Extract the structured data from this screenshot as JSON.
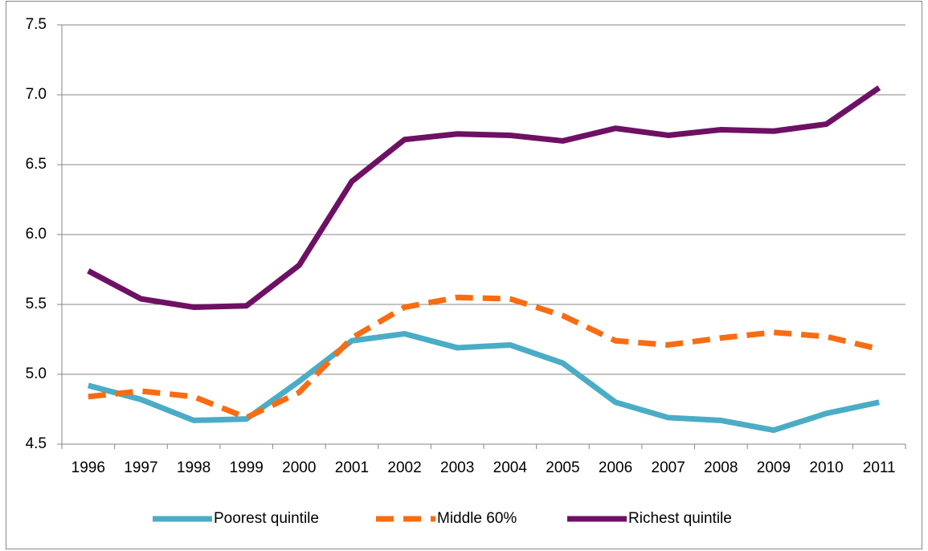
{
  "chart_data": {
    "type": "line",
    "categories": [
      "1996",
      "1997",
      "1998",
      "1999",
      "2000",
      "2001",
      "2002",
      "2003",
      "2004",
      "2005",
      "2006",
      "2007",
      "2008",
      "2009",
      "2010",
      "2011"
    ],
    "series": [
      {
        "name": "Poorest quintile",
        "color": "#4bacc6",
        "dashed": false,
        "values": [
          4.92,
          4.82,
          4.67,
          4.68,
          4.95,
          5.24,
          5.29,
          5.19,
          5.21,
          5.08,
          4.8,
          4.69,
          4.67,
          4.6,
          4.72,
          4.8
        ]
      },
      {
        "name": "Middle 60%",
        "color": "#f86c12",
        "dashed": true,
        "values": [
          4.84,
          4.88,
          4.84,
          4.69,
          4.87,
          5.26,
          5.48,
          5.55,
          5.54,
          5.42,
          5.24,
          5.21,
          5.26,
          5.3,
          5.27,
          5.18
        ]
      },
      {
        "name": "Richest quintile",
        "color": "#6e1064",
        "dashed": false,
        "values": [
          5.74,
          5.54,
          5.48,
          5.49,
          5.78,
          6.38,
          6.68,
          6.72,
          6.71,
          6.67,
          6.76,
          6.71,
          6.75,
          6.74,
          6.79,
          7.05
        ]
      }
    ],
    "ylim": [
      4.5,
      7.5
    ],
    "yticks": [
      4.5,
      {
        "value": 5,
        "label": "5.0"
      },
      5.5,
      {
        "value": 6,
        "label": "6.0"
      },
      6.5,
      {
        "value": 7,
        "label": "7.0"
      },
      7.5
    ],
    "grid": true,
    "legend": "bottom"
  }
}
